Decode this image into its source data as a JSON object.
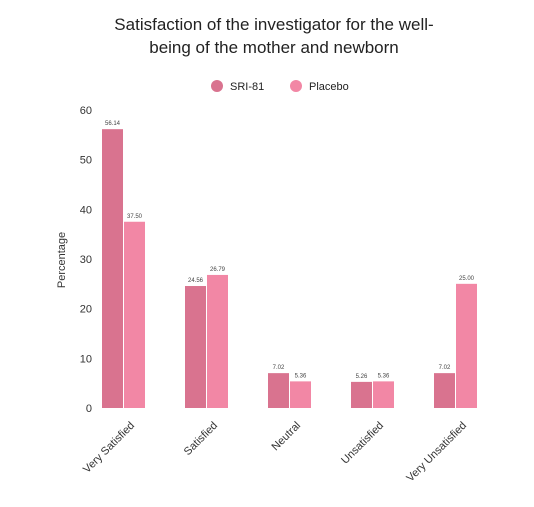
{
  "chart_data": {
    "type": "bar",
    "title_lines": [
      "Satisfaction of the investigator for the well-",
      "being of the mother and newborn"
    ],
    "xlabel": "",
    "ylabel": "Percentage",
    "ylim": [
      0,
      60
    ],
    "yticks": [
      0,
      10,
      20,
      30,
      40,
      50,
      60
    ],
    "grid": false,
    "legend_position": "top-center",
    "categories": [
      "Very Satisfied",
      "Satisfied",
      "Neutral",
      "Unsatisfied",
      "Very Unsatisfied"
    ],
    "series": [
      {
        "name": "SRI-81",
        "color": "#d9738f",
        "values": [
          56.14,
          24.56,
          7.02,
          5.26,
          7.02
        ],
        "labels": [
          "56.14",
          "24.56",
          "7.02",
          "5.26",
          "7.02"
        ]
      },
      {
        "name": "Placebo",
        "color": "#f287a5",
        "values": [
          37.5,
          26.79,
          5.36,
          5.36,
          25.0
        ],
        "labels": [
          "37.50",
          "26.79",
          "5.36",
          "5.36",
          "25.00"
        ]
      }
    ]
  }
}
